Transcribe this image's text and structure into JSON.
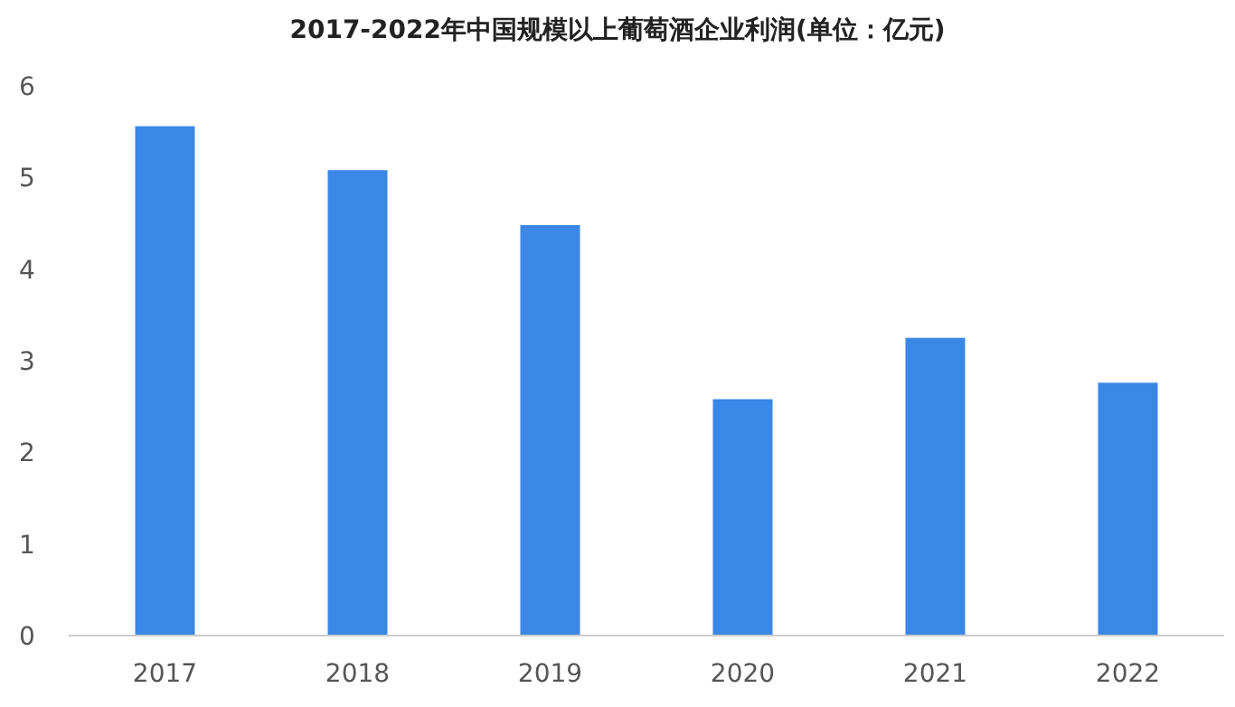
{
  "chart_data": {
    "type": "bar",
    "title": "2017-2022年中国规模以上葡萄酒企业利润(单位：亿元)",
    "categories": [
      "2017",
      "2018",
      "2019",
      "2020",
      "2021",
      "2022"
    ],
    "values": [
      5.56,
      5.08,
      4.48,
      2.58,
      3.25,
      2.76
    ],
    "color": "#3a87e6",
    "ylim": [
      0,
      6
    ],
    "yticks": [
      0,
      1,
      2,
      3,
      4,
      5,
      6
    ],
    "grid": false,
    "legend": false
  }
}
